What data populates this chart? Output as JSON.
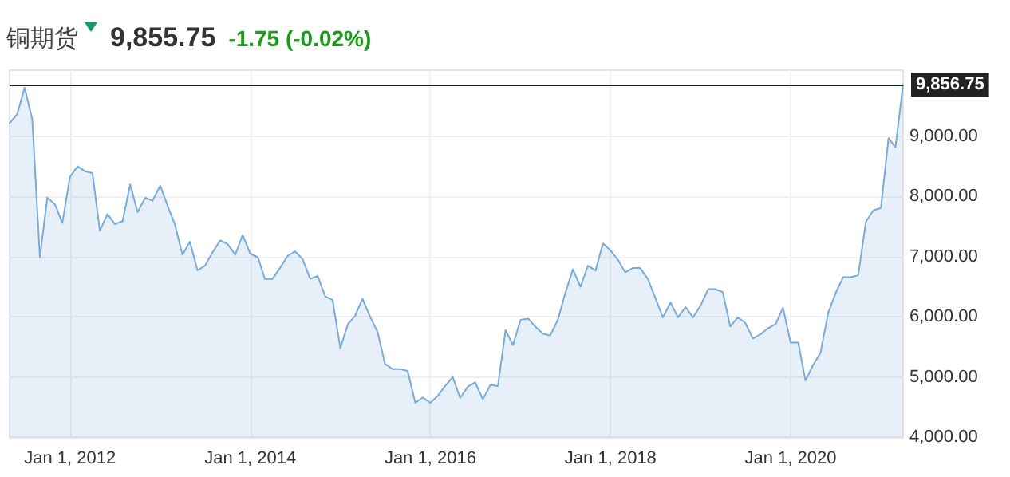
{
  "chart_data": {
    "type": "area",
    "title": "铜期货",
    "subtitle": "9,855.75",
    "annotations": [
      "-1.75 (-0.02%)"
    ],
    "x": [
      "2011-05",
      "2011-06",
      "2011-07",
      "2011-08",
      "2011-09",
      "2011-10",
      "2011-11",
      "2011-12",
      "2012-01",
      "2012-02",
      "2012-03",
      "2012-04",
      "2012-05",
      "2012-06",
      "2012-07",
      "2012-08",
      "2012-09",
      "2012-10",
      "2012-11",
      "2012-12",
      "2013-01",
      "2013-02",
      "2013-03",
      "2013-04",
      "2013-05",
      "2013-06",
      "2013-07",
      "2013-08",
      "2013-09",
      "2013-10",
      "2013-11",
      "2013-12",
      "2014-01",
      "2014-02",
      "2014-03",
      "2014-04",
      "2014-05",
      "2014-06",
      "2014-07",
      "2014-08",
      "2014-09",
      "2014-10",
      "2014-11",
      "2014-12",
      "2015-01",
      "2015-02",
      "2015-03",
      "2015-04",
      "2015-05",
      "2015-06",
      "2015-07",
      "2015-08",
      "2015-09",
      "2015-10",
      "2015-11",
      "2015-12",
      "2016-01",
      "2016-02",
      "2016-03",
      "2016-04",
      "2016-05",
      "2016-06",
      "2016-07",
      "2016-08",
      "2016-09",
      "2016-10",
      "2016-11",
      "2016-12",
      "2017-01",
      "2017-02",
      "2017-03",
      "2017-04",
      "2017-05",
      "2017-06",
      "2017-07",
      "2017-08",
      "2017-09",
      "2017-10",
      "2017-11",
      "2017-12",
      "2018-01",
      "2018-02",
      "2018-03",
      "2018-04",
      "2018-05",
      "2018-06",
      "2018-07",
      "2018-08",
      "2018-09",
      "2018-10",
      "2018-11",
      "2018-12",
      "2019-01",
      "2019-02",
      "2019-03",
      "2019-04",
      "2019-05",
      "2019-06",
      "2019-07",
      "2019-08",
      "2019-09",
      "2019-10",
      "2019-11",
      "2019-12",
      "2020-01",
      "2020-02",
      "2020-03",
      "2020-04",
      "2020-05",
      "2020-06",
      "2020-07",
      "2020-08",
      "2020-09",
      "2020-10",
      "2020-11",
      "2020-12",
      "2021-01",
      "2021-02",
      "2021-03",
      "2021-04"
    ],
    "series": [
      {
        "color": "#7aaad8",
        "values": [
          9220,
          9370,
          9810,
          9280,
          6990,
          7980,
          7870,
          7560,
          8330,
          8500,
          8420,
          8390,
          7430,
          7710,
          7540,
          7590,
          8200,
          7740,
          7980,
          7930,
          8180,
          7830,
          7540,
          7030,
          7250,
          6770,
          6850,
          7070,
          7270,
          7210,
          7030,
          7360,
          7050,
          6990,
          6630,
          6630,
          6810,
          7010,
          7090,
          6960,
          6630,
          6680,
          6340,
          6280,
          5480,
          5880,
          6010,
          6300,
          6010,
          5750,
          5220,
          5130,
          5130,
          5100,
          4570,
          4660,
          4570,
          4690,
          4850,
          5000,
          4650,
          4840,
          4910,
          4630,
          4870,
          4850,
          5780,
          5530,
          5950,
          5970,
          5840,
          5720,
          5690,
          5950,
          6390,
          6790,
          6500,
          6850,
          6770,
          7220,
          7100,
          6940,
          6740,
          6810,
          6810,
          6630,
          6320,
          5990,
          6240,
          5990,
          6160,
          5990,
          6190,
          6460,
          6460,
          6410,
          5840,
          5990,
          5900,
          5640,
          5710,
          5810,
          5880,
          6150,
          5570,
          5570,
          4940,
          5200,
          5400,
          6060,
          6390,
          6660,
          6660,
          6690,
          7580,
          7770,
          7810,
          8970,
          8820,
          9856.75
        ]
      }
    ],
    "xlim": [
      "2011-05",
      "2021-04"
    ],
    "xticks": [
      {
        "value": "2012-01",
        "label": "Jan 1, 2012"
      },
      {
        "value": "2014-01",
        "label": "Jan 1, 2014"
      },
      {
        "value": "2016-01",
        "label": "Jan 1, 2016"
      },
      {
        "value": "2018-01",
        "label": "Jan 1, 2018"
      },
      {
        "value": "2020-01",
        "label": "Jan 1, 2020"
      }
    ],
    "ylim": [
      4000,
      10100
    ],
    "yticks": [
      {
        "value": 4000,
        "label": "4,000.00"
      },
      {
        "value": 5000,
        "label": "5,000.00"
      },
      {
        "value": 6000,
        "label": "6,000.00"
      },
      {
        "value": 7000,
        "label": "7,000.00"
      },
      {
        "value": 8000,
        "label": "8,000.00"
      },
      {
        "value": 9000,
        "label": "9,000.00"
      }
    ],
    "ref_lines": [
      {
        "axis": "y",
        "value": 9856.75,
        "label": "9,856.75",
        "color": "#222222"
      }
    ],
    "grid": true,
    "marker": "none",
    "line_style": "solid"
  }
}
